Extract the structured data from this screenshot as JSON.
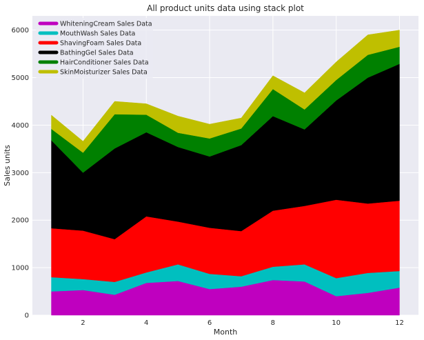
{
  "chart_data": {
    "type": "area",
    "stacked": true,
    "title": "All product units data using stack plot",
    "xlabel": "Month",
    "ylabel": "Sales units",
    "x": [
      1,
      2,
      3,
      4,
      5,
      6,
      7,
      8,
      9,
      10,
      11,
      12
    ],
    "xlim": [
      0.4,
      12.6
    ],
    "ylim": [
      0,
      6300
    ],
    "xticks": [
      2,
      4,
      6,
      8,
      10,
      12
    ],
    "yticks": [
      0,
      1000,
      2000,
      3000,
      4000,
      5000,
      6000
    ],
    "grid": true,
    "background": "#EAEAF2",
    "legend_position": "top-left",
    "series": [
      {
        "name": "WhiteningCream Sales Data",
        "color": "#BF00BF",
        "values": [
          500,
          530,
          430,
          680,
          720,
          550,
          600,
          740,
          710,
          400,
          470,
          580
        ]
      },
      {
        "name": "MouthWash Sales Data",
        "color": "#00BFBF",
        "values": [
          300,
          230,
          270,
          220,
          350,
          320,
          220,
          280,
          360,
          380,
          420,
          350
        ]
      },
      {
        "name": "ShavingFoam Sales Data",
        "color": "#FF0000",
        "values": [
          1030,
          1020,
          900,
          1180,
          900,
          970,
          950,
          1180,
          1230,
          1650,
          1460,
          1480
        ]
      },
      {
        "name": "BathingGel Sales Data",
        "color": "#000000",
        "values": [
          1850,
          1220,
          1910,
          1770,
          1570,
          1500,
          1810,
          1990,
          1610,
          2090,
          2650,
          2880
        ]
      },
      {
        "name": "HairConditioner Sales Data",
        "color": "#008000",
        "values": [
          240,
          420,
          720,
          370,
          300,
          380,
          350,
          570,
          420,
          430,
          480,
          360
        ]
      },
      {
        "name": "SkinMoisturizer Sales Data",
        "color": "#BFBF00",
        "values": [
          290,
          240,
          270,
          230,
          350,
          300,
          220,
          280,
          350,
          380,
          420,
          350
        ]
      }
    ]
  }
}
